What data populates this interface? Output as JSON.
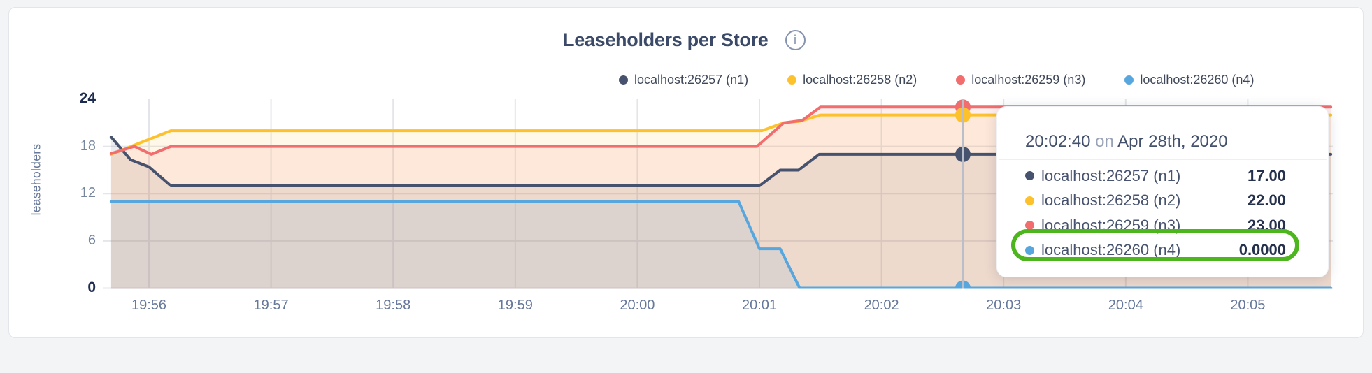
{
  "page": {
    "background": "#f2f4f6",
    "card_background": "#ffffff",
    "card_border": "#e2e5e9"
  },
  "header": {
    "title": "Leaseholders per Store",
    "info_icon_glyph": "i"
  },
  "legend": [
    {
      "label": "localhost:26257 (n1)",
      "color": "#47536e"
    },
    {
      "label": "localhost:26258 (n2)",
      "color": "#fdc12c"
    },
    {
      "label": "localhost:26259 (n3)",
      "color": "#f26d6d"
    },
    {
      "label": "localhost:26260 (n4)",
      "color": "#57a6de"
    }
  ],
  "chart_data": {
    "type": "area",
    "title": "Leaseholders per Store",
    "ylabel": "leaseholders",
    "ylim": [
      0,
      24
    ],
    "grid": true,
    "legend_position": "top-right",
    "x_unit": "minutes after 19:55 on Apr 28th, 2020",
    "x_ticks": [
      {
        "t": 1,
        "label": "19:56"
      },
      {
        "t": 2,
        "label": "19:57"
      },
      {
        "t": 3,
        "label": "19:58"
      },
      {
        "t": 4,
        "label": "19:59"
      },
      {
        "t": 5,
        "label": "20:00"
      },
      {
        "t": 6,
        "label": "20:01"
      },
      {
        "t": 7,
        "label": "20:02"
      },
      {
        "t": 8,
        "label": "20:03"
      },
      {
        "t": 9,
        "label": "20:04"
      },
      {
        "t": 10,
        "label": "20:05"
      }
    ],
    "y_ticks": [
      {
        "v": 0,
        "label": "0",
        "bold": true,
        "gridline": true
      },
      {
        "v": 6,
        "label": "6",
        "bold": false,
        "gridline": true
      },
      {
        "v": 12,
        "label": "12",
        "bold": false,
        "gridline": true
      },
      {
        "v": 18,
        "label": "18",
        "bold": false,
        "gridline": true
      },
      {
        "v": 24,
        "label": "24",
        "bold": true,
        "gridline": false
      }
    ],
    "series": [
      {
        "name": "localhost:26257 (n1)",
        "color": "#47536e",
        "points": [
          [
            0.69,
            19.2
          ],
          [
            0.85,
            16.3
          ],
          [
            1.0,
            15.4
          ],
          [
            1.18,
            13
          ],
          [
            6.0,
            13
          ],
          [
            6.17,
            15
          ],
          [
            6.32,
            15
          ],
          [
            6.49,
            17
          ],
          [
            10.68,
            17
          ]
        ]
      },
      {
        "name": "localhost:26258 (n2)",
        "color": "#fdc12c",
        "points": [
          [
            0.69,
            17.0
          ],
          [
            1.18,
            20
          ],
          [
            6.02,
            20
          ],
          [
            6.2,
            21
          ],
          [
            6.33,
            21.2
          ],
          [
            6.5,
            22
          ],
          [
            10.68,
            22
          ]
        ]
      },
      {
        "name": "localhost:26259 (n3)",
        "color": "#f26d6d",
        "points": [
          [
            0.69,
            17.1
          ],
          [
            0.88,
            18
          ],
          [
            1.02,
            17
          ],
          [
            1.18,
            18
          ],
          [
            5.98,
            18
          ],
          [
            6.2,
            21
          ],
          [
            6.35,
            21.3
          ],
          [
            6.5,
            23
          ],
          [
            10.68,
            23
          ]
        ]
      },
      {
        "name": "localhost:26260 (n4)",
        "color": "#57a6de",
        "points": [
          [
            0.69,
            11
          ],
          [
            5.83,
            11
          ],
          [
            6.0,
            5
          ],
          [
            6.17,
            5
          ],
          [
            6.33,
            0
          ],
          [
            10.68,
            0
          ]
        ]
      }
    ],
    "hover": {
      "t": 7.6667,
      "time_label": "20:02:40",
      "values": [
        17,
        22,
        23,
        0
      ],
      "dot_order": [
        0,
        2,
        1,
        3
      ]
    }
  },
  "tooltip": {
    "time": "20:02:40",
    "connector": "on",
    "date": "Apr 28th, 2020",
    "rows": [
      {
        "label": "localhost:26257 (n1)",
        "value": "17.00",
        "color": "#47536e"
      },
      {
        "label": "localhost:26258 (n2)",
        "value": "22.00",
        "color": "#fdc12c"
      },
      {
        "label": "localhost:26259 (n3)",
        "value": "23.00",
        "color": "#f26d6d"
      },
      {
        "label": "localhost:26260 (n4)",
        "value": "0.0000",
        "color": "#57a6de"
      }
    ],
    "highlight": {
      "row_index": 3,
      "ring_color": "#4db51d"
    }
  }
}
